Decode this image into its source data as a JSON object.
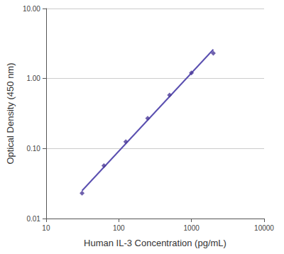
{
  "chart_data": {
    "type": "scatter",
    "x_label": "Human IL-3 Concentration (pg/mL)",
    "y_label": "Optical Density (450 nm)",
    "log": true,
    "grid": true,
    "xlim": [
      10,
      10000
    ],
    "xticks": [
      10,
      100,
      1000,
      10000
    ],
    "ylim": [
      0.01,
      10
    ],
    "yticks": [
      0.01,
      {
        "value": 0.1,
        "label": "0.10"
      },
      {
        "value": 1,
        "label": "1.00"
      },
      {
        "value": 10,
        "label": "10.00"
      }
    ],
    "series": [
      {
        "type": "scatter",
        "marker": "diamond",
        "color": "#4b3a99",
        "x": [
          31.25,
          62.5,
          125,
          250,
          500,
          1000,
          2000
        ],
        "values": [
          0.023,
          0.057,
          0.125,
          0.27,
          0.58,
          1.2,
          2.3
        ]
      },
      {
        "type": "line",
        "line_style": "solid",
        "color": "#5a4fb0",
        "x": [
          31.25,
          2000
        ],
        "values": [
          0.025,
          2.6
        ]
      }
    ]
  }
}
